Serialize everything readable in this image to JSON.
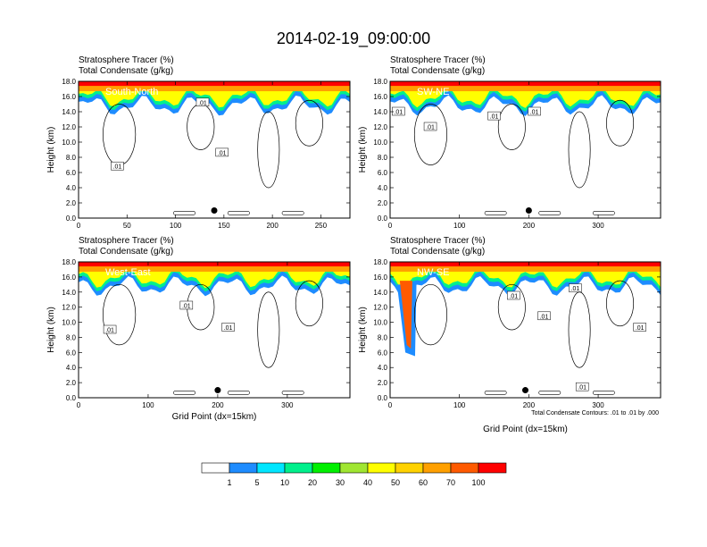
{
  "figure": {
    "title": "2014-02-19_09:00:00",
    "contour_note": "Total Condensate Contours: .01 to .01 by .000"
  },
  "colors": {
    "scale": [
      "#ffffff",
      "#1e8cff",
      "#00e6ff",
      "#00f08c",
      "#00f000",
      "#a0e632",
      "#ffff00",
      "#ffd200",
      "#ffa000",
      "#ff5a00",
      "#ff0000"
    ]
  },
  "colorbar": {
    "labels": [
      "1",
      "5",
      "10",
      "20",
      "30",
      "40",
      "50",
      "60",
      "70",
      "100"
    ]
  },
  "chart_data": [
    {
      "type": "heatmap",
      "panel": "South-North",
      "title_line1": "Stratosphere Tracer   (%)",
      "title_line2": "Total Condensate   (g/kg)",
      "ylabel": "Height (km)",
      "xlabel": "",
      "xlim": [
        0,
        280
      ],
      "ylim": [
        0,
        18
      ],
      "x_ticks": [
        0,
        50,
        100,
        150,
        200,
        250
      ],
      "y_ticks": [
        "0.0",
        "2.0",
        "4.0",
        "6.0",
        "8.0",
        "10.0",
        "12.0",
        "14.0",
        "16.0",
        "18.0"
      ],
      "marker": {
        "x": 140,
        "y": 1.0
      },
      "contour_labels": [
        {
          "text": ".01",
          "x": 128,
          "y": 15.2
        },
        {
          "text": ".01",
          "x": 40,
          "y": 6.8
        },
        {
          "text": ".01",
          "x": 148,
          "y": 8.6
        }
      ]
    },
    {
      "type": "heatmap",
      "panel": "SW-NE",
      "title_line1": "Stratosphere Tracer   (%)",
      "title_line2": "Total Condensate   (g/kg)",
      "ylabel": "Height (km)",
      "xlabel": "",
      "xlim": [
        0,
        390
      ],
      "ylim": [
        0,
        18
      ],
      "x_ticks": [
        0,
        100,
        200,
        300
      ],
      "y_ticks": [
        "0.0",
        "2.0",
        "4.0",
        "6.0",
        "8.0",
        "10.0",
        "12.0",
        "14.0",
        "16.0",
        "18.0"
      ],
      "marker": {
        "x": 200,
        "y": 1.0
      },
      "contour_labels": [
        {
          "text": ".01",
          "x": 12,
          "y": 14.0
        },
        {
          "text": ".01",
          "x": 58,
          "y": 12.0
        },
        {
          "text": ".01",
          "x": 150,
          "y": 13.4
        },
        {
          "text": ".01",
          "x": 208,
          "y": 14.0
        }
      ]
    },
    {
      "type": "heatmap",
      "panel": "West-East",
      "title_line1": "Stratosphere Tracer   (%)",
      "title_line2": "Total Condensate   (g/kg)",
      "ylabel": "Height (km)",
      "xlabel": "Grid Point (dx=15km)",
      "xlim": [
        0,
        390
      ],
      "ylim": [
        0,
        18
      ],
      "x_ticks": [
        0,
        100,
        200,
        300
      ],
      "y_ticks": [
        "0.0",
        "2.0",
        "4.0",
        "6.0",
        "8.0",
        "10.0",
        "12.0",
        "14.0",
        "16.0",
        "18.0"
      ],
      "marker": {
        "x": 200,
        "y": 1.0
      },
      "contour_labels": [
        {
          "text": ".01",
          "x": 155,
          "y": 12.2
        },
        {
          "text": ".01",
          "x": 45,
          "y": 9.0
        },
        {
          "text": ".01",
          "x": 215,
          "y": 9.3
        }
      ]
    },
    {
      "type": "heatmap",
      "panel": "NW-SE",
      "title_line1": "Stratosphere Tracer   (%)",
      "title_line2": "Total Condensate   (g/kg)",
      "ylabel": "Height (km)",
      "xlabel": "Grid Point (dx=15km)",
      "xlim": [
        0,
        390
      ],
      "ylim": [
        0,
        18
      ],
      "x_ticks": [
        0,
        100,
        200,
        300
      ],
      "y_ticks": [
        "0.0",
        "2.0",
        "4.0",
        "6.0",
        "8.0",
        "10.0",
        "12.0",
        "14.0",
        "16.0",
        "18.0"
      ],
      "marker": {
        "x": 195,
        "y": 1.0
      },
      "contour_labels": [
        {
          "text": ".01",
          "x": 178,
          "y": 13.5
        },
        {
          "text": ".01",
          "x": 267,
          "y": 14.5
        },
        {
          "text": ".01",
          "x": 222,
          "y": 10.8
        },
        {
          "text": ".01",
          "x": 360,
          "y": 9.3
        },
        {
          "text": ".01",
          "x": 277,
          "y": 1.4
        }
      ]
    }
  ]
}
